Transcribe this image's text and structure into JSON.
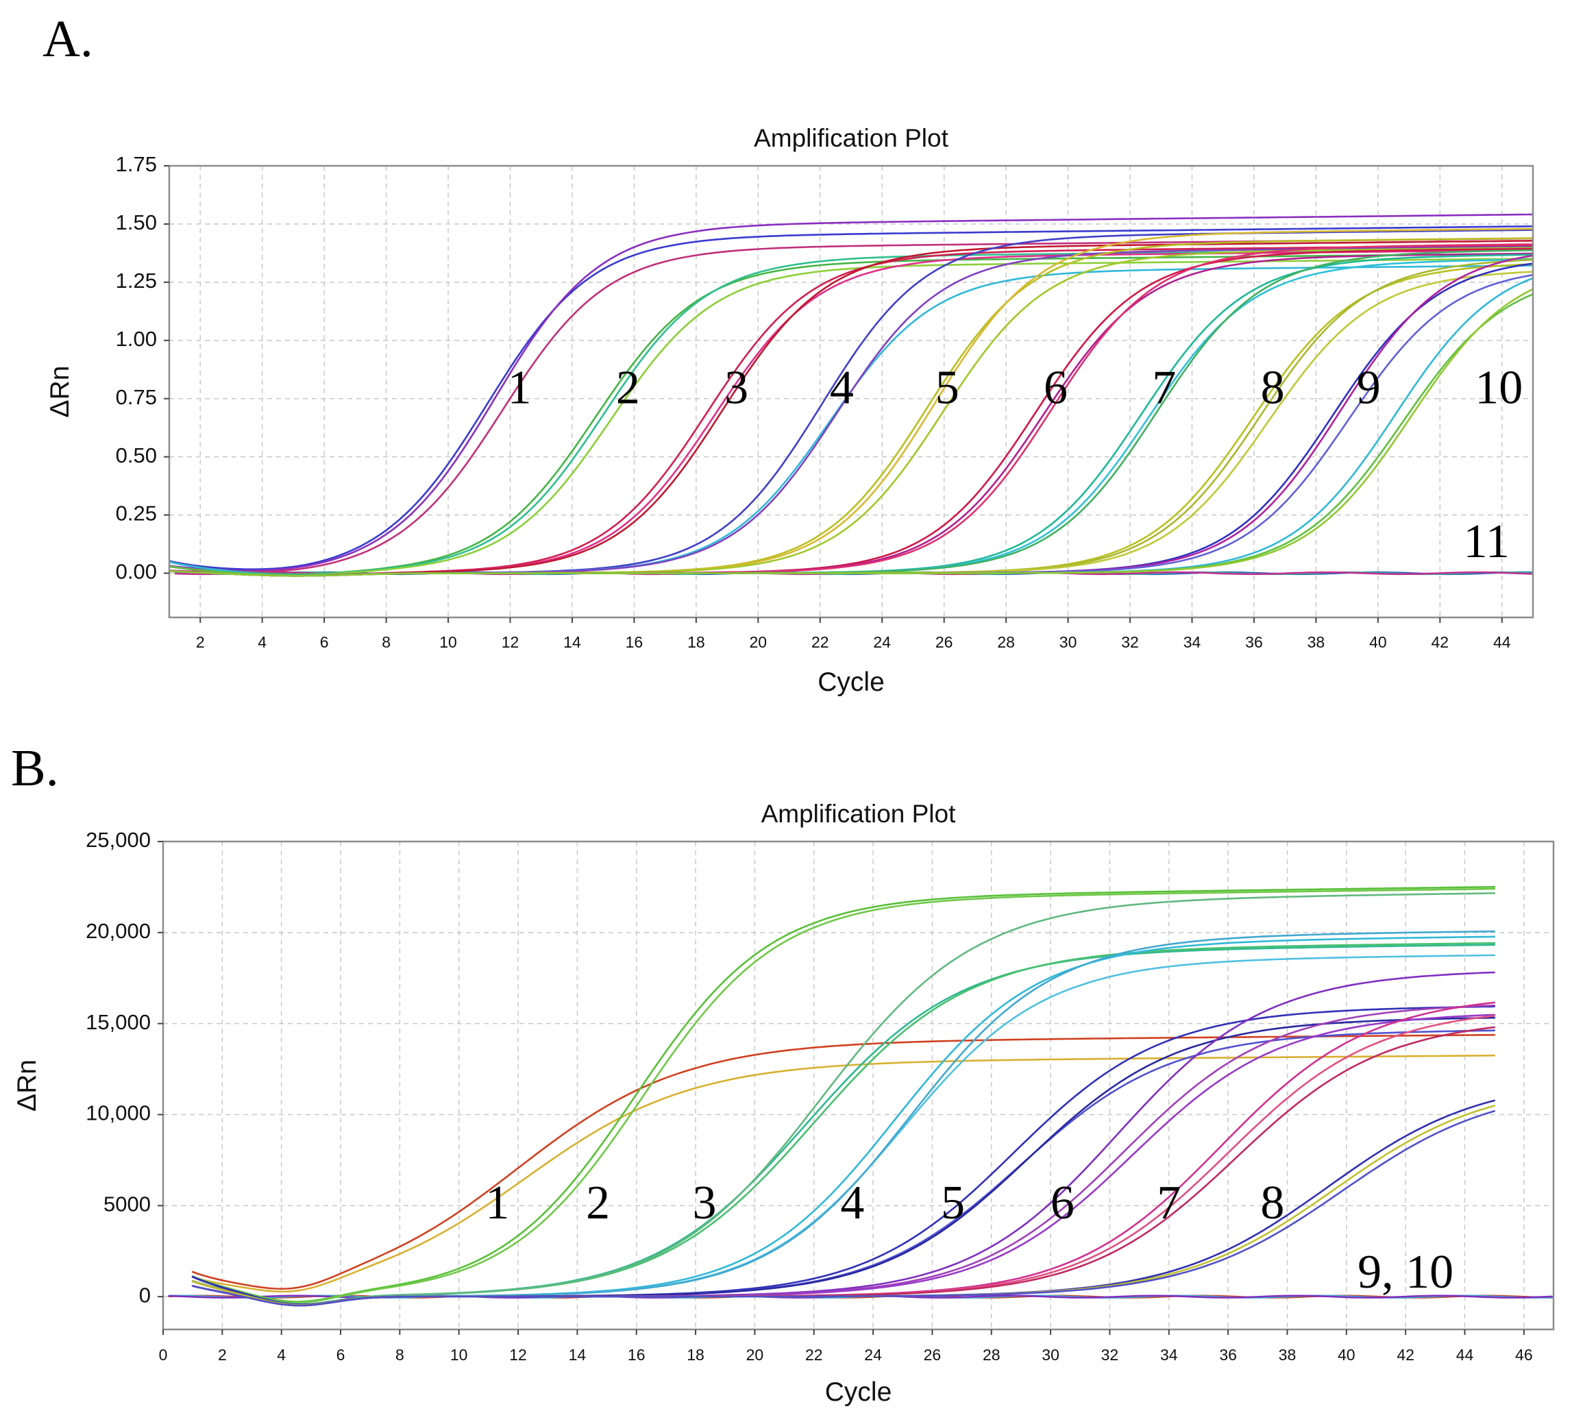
{
  "chart_data": [
    {
      "panel": "A.",
      "type": "line",
      "title": "Amplification Plot",
      "xlabel": "Cycle",
      "ylabel": "ΔRn",
      "xlim": [
        1,
        45
      ],
      "ylim": [
        -0.19,
        1.75
      ],
      "xticks": [
        2,
        4,
        6,
        8,
        10,
        12,
        14,
        16,
        18,
        20,
        22,
        24,
        26,
        28,
        30,
        32,
        34,
        36,
        38,
        40,
        42,
        44
      ],
      "ytick_labels": [
        "1.75",
        "1.50",
        "1.25",
        "1.00",
        "0.75",
        "0.50",
        "0.25",
        "0.00"
      ],
      "ytick_values": [
        1.75,
        1.5,
        1.25,
        1.0,
        0.75,
        0.5,
        0.25,
        0.0
      ],
      "grid": true,
      "curve_labels": [
        {
          "text": "1",
          "x": 12.3,
          "y": 0.8
        },
        {
          "text": "2",
          "x": 15.8,
          "y": 0.8
        },
        {
          "text": "3",
          "x": 19.3,
          "y": 0.8
        },
        {
          "text": "4",
          "x": 22.7,
          "y": 0.8
        },
        {
          "text": "5",
          "x": 26.1,
          "y": 0.8
        },
        {
          "text": "6",
          "x": 29.6,
          "y": 0.8
        },
        {
          "text": "7",
          "x": 33.1,
          "y": 0.8
        },
        {
          "text": "8",
          "x": 36.6,
          "y": 0.8
        },
        {
          "text": "9",
          "x": 39.7,
          "y": 0.8
        },
        {
          "text": "10",
          "x": 43.9,
          "y": 0.8
        },
        {
          "text": "11",
          "x": 43.5,
          "y": 0.14
        }
      ],
      "groups": [
        {
          "label": "1",
          "colors": [
            "#3a3ad0",
            "#8a2fc0",
            "#c0307a"
          ],
          "midpoint": 11.5,
          "plateau": [
            1.45,
            1.5,
            1.4
          ],
          "slope": 1.7
        },
        {
          "label": "2",
          "colors": [
            "#45b545",
            "#2fbf8f",
            "#8ccf3a"
          ],
          "midpoint": 15.0,
          "plateau": [
            1.34,
            1.36,
            1.32
          ],
          "slope": 1.7
        },
        {
          "label": "3",
          "colors": [
            "#d02050",
            "#e0308a",
            "#c01830"
          ],
          "midpoint": 18.6,
          "plateau": [
            1.38,
            1.36,
            1.4
          ],
          "slope": 1.7
        },
        {
          "label": "4",
          "colors": [
            "#4040c8",
            "#30b8d8",
            "#8040c0"
          ],
          "midpoint": 22.3,
          "plateau": [
            1.45,
            1.3,
            1.38
          ],
          "slope": 1.7
        },
        {
          "label": "5",
          "colors": [
            "#b8c020",
            "#d8b830",
            "#a0c828"
          ],
          "midpoint": 25.7,
          "plateau": [
            1.42,
            1.46,
            1.38
          ],
          "slope": 1.7
        },
        {
          "label": "6",
          "colors": [
            "#d01848",
            "#b02090",
            "#e03070"
          ],
          "midpoint": 29.2,
          "plateau": [
            1.38,
            1.36,
            1.4
          ],
          "slope": 1.7
        },
        {
          "label": "7",
          "colors": [
            "#20b898",
            "#30c0d8",
            "#40b060"
          ],
          "midpoint": 32.6,
          "plateau": [
            1.36,
            1.34,
            1.38
          ],
          "slope": 1.7
        },
        {
          "label": "8",
          "colors": [
            "#b8c020",
            "#a8b830",
            "#c0c838"
          ],
          "midpoint": 36.2,
          "plateau": [
            1.33,
            1.35,
            1.3
          ],
          "slope": 1.7
        },
        {
          "label": "9",
          "colors": [
            "#3030c0",
            "#b020a0",
            "#6060d8"
          ],
          "midpoint": 38.8,
          "plateau": [
            1.36,
            1.4,
            1.32
          ],
          "slope": 1.7
        },
        {
          "label": "10",
          "colors": [
            "#30b8d8",
            "#60c040",
            "#90c830"
          ],
          "midpoint": 40.8,
          "plateau": [
            1.36,
            1.3,
            1.34
          ],
          "slope": 1.7
        }
      ],
      "flat_lines": {
        "label": "11",
        "colors": [
          "#2050c0",
          "#30b8a0",
          "#c03090"
        ],
        "value": 0.0
      }
    },
    {
      "panel": "B.",
      "type": "line",
      "title": "Amplification Plot",
      "xlabel": "Cycle",
      "ylabel": "ΔRn",
      "xlim": [
        0,
        47
      ],
      "ylim": [
        -1800,
        25000
      ],
      "xticks": [
        0,
        2,
        4,
        6,
        8,
        10,
        12,
        14,
        16,
        18,
        20,
        22,
        24,
        26,
        28,
        30,
        32,
        34,
        36,
        38,
        40,
        42,
        44,
        46
      ],
      "ytick_labels": [
        "25,000",
        "20,000",
        "15,000",
        "10,000",
        "5000",
        "0"
      ],
      "ytick_values": [
        25000,
        20000,
        15000,
        10000,
        5000,
        0
      ],
      "grid": true,
      "curve_labels": [
        {
          "text": "1",
          "x": 11.3,
          "y": 5200
        },
        {
          "text": "2",
          "x": 14.7,
          "y": 5200
        },
        {
          "text": "3",
          "x": 18.3,
          "y": 5200
        },
        {
          "text": "4",
          "x": 23.3,
          "y": 5200
        },
        {
          "text": "5",
          "x": 26.7,
          "y": 5200
        },
        {
          "text": "6",
          "x": 30.4,
          "y": 5200
        },
        {
          "text": "7",
          "x": 34.0,
          "y": 5200
        },
        {
          "text": "8",
          "x": 37.5,
          "y": 5200
        },
        {
          "text": "9, 10",
          "x": 42.0,
          "y": 1400
        }
      ],
      "groups": [
        {
          "label": "1",
          "colors": [
            "#d04020",
            "#d8b030"
          ],
          "midpoint": 12.2,
          "plateau": [
            14000,
            12900
          ],
          "slope": 2.8
        },
        {
          "label": "2",
          "colors": [
            "#58c038",
            "#70c848"
          ],
          "midpoint": 16.2,
          "plateau": [
            22000,
            21900
          ],
          "slope": 2.3
        },
        {
          "label": "3",
          "colors": [
            "#30b890",
            "#48c070",
            "#60b880"
          ],
          "midpoint": 22.0,
          "plateau": [
            19000,
            19100,
            21800
          ],
          "slope": 2.6
        },
        {
          "label": "4",
          "colors": [
            "#30b8d8",
            "#50c0e0",
            "#40a8d0"
          ],
          "midpoint": 25.0,
          "plateau": [
            19500,
            18500,
            19800
          ],
          "slope": 2.4
        },
        {
          "label": "5",
          "colors": [
            "#3030b8",
            "#5050d0",
            "#2828a0"
          ],
          "midpoint": 29.0,
          "plateau": [
            15800,
            14500,
            15200
          ],
          "slope": 2.5
        },
        {
          "label": "6",
          "colors": [
            "#8030c0",
            "#a040b8",
            "#9838c8"
          ],
          "midpoint": 32.5,
          "plateau": [
            17800,
            16000,
            15500
          ],
          "slope": 2.5
        },
        {
          "label": "7",
          "colors": [
            "#d03090",
            "#e05080",
            "#c02860"
          ],
          "midpoint": 36.0,
          "plateau": [
            16500,
            15800,
            15200
          ],
          "slope": 2.5
        },
        {
          "label": "8",
          "colors": [
            "#3030b0",
            "#c0c030",
            "#5050c8"
          ],
          "midpoint": 39.6,
          "plateau": [
            12000,
            11800,
            11600
          ],
          "slope": 2.6
        }
      ],
      "flat_lines": {
        "label": "9, 10",
        "colors": [
          "#d04020",
          "#30b8d8",
          "#8030c0"
        ],
        "value": 0
      }
    }
  ]
}
